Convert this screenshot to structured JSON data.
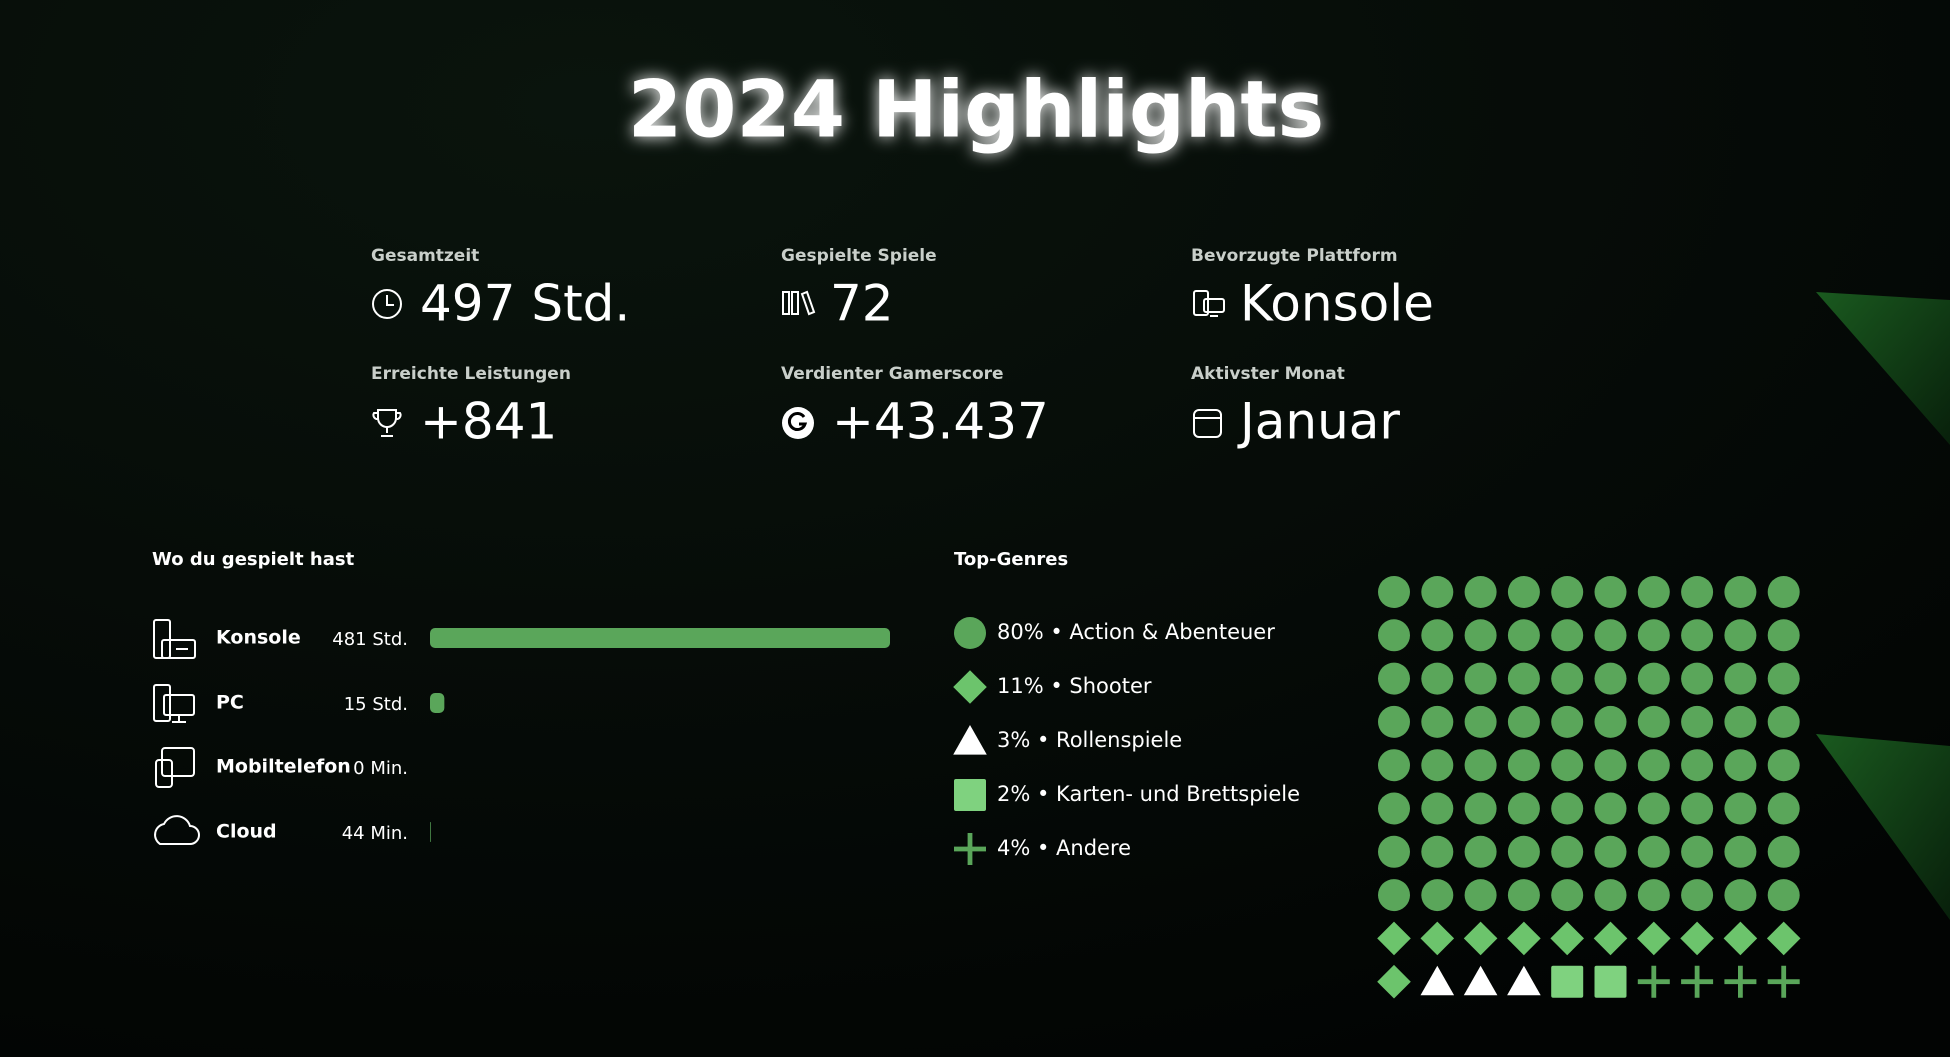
{
  "header": {
    "title": "2024 Highlights"
  },
  "stats": [
    {
      "label": "Gesamtzeit",
      "value": "497 Std."
    },
    {
      "label": "Gespielte Spiele",
      "value": "72"
    },
    {
      "label": "Bevorzugte Plattform",
      "value": "Konsole"
    },
    {
      "label": "Erreichte Leistungen",
      "value": "+841"
    },
    {
      "label": "Verdienter Gamerscore",
      "value": "+43.437"
    },
    {
      "label": "Aktivster Monat",
      "value": "Januar"
    }
  ],
  "platforms": {
    "title": "Wo du gespielt hast",
    "color": "#5aa65a",
    "items": [
      {
        "name": "Konsole",
        "minutes": 28860,
        "label": "481 Std."
      },
      {
        "name": "PC",
        "minutes": 900,
        "label": "15 Std."
      },
      {
        "name": "Mobiltelefon",
        "minutes": 0,
        "label": "0 Min."
      },
      {
        "name": "Cloud",
        "minutes": 44,
        "label": "44 Min."
      }
    ]
  },
  "genres": {
    "title": "Top-Genres",
    "items": [
      {
        "percent": 80,
        "label": "80% • Action & Abenteuer",
        "shape": "circle",
        "color": "#5aa65a"
      },
      {
        "percent": 11,
        "label": "11% • Shooter",
        "shape": "diamond",
        "color": "#6cc46c"
      },
      {
        "percent": 3,
        "label": "3% • Rollenspiele",
        "shape": "triangle",
        "color": "#ffffff"
      },
      {
        "percent": 2,
        "label": "2% • Karten- und Brettspiele",
        "shape": "square",
        "color": "#7fd27f"
      },
      {
        "percent": 4,
        "label": "4% • Andere",
        "shape": "plus",
        "color": "#5aa65a"
      }
    ]
  }
}
